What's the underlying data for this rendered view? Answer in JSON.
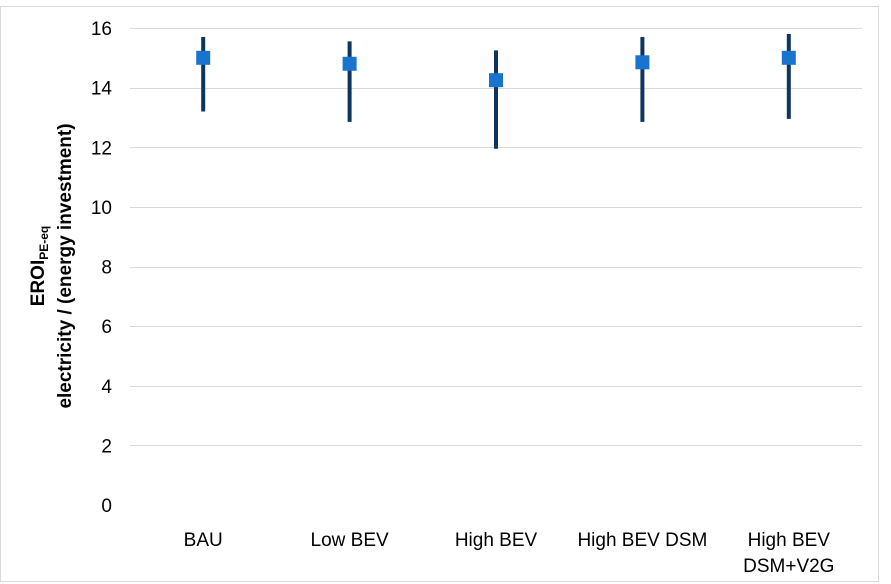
{
  "chart_data": {
    "type": "scatter",
    "title": "",
    "xlabel": "",
    "ylabel": {
      "line1_main": "EROI",
      "line1_subscript": "PE-eq",
      "line2": "electricity / (energy investment)"
    },
    "ylim": [
      0,
      16
    ],
    "yticks": [
      0,
      2,
      4,
      6,
      8,
      10,
      12,
      14,
      16
    ],
    "grid": true,
    "legend": "none",
    "categories": [
      [
        "BAU"
      ],
      [
        "Low BEV"
      ],
      [
        "High BEV"
      ],
      [
        "High BEV DSM"
      ],
      [
        "High BEV",
        "DSM+V2G"
      ]
    ],
    "series": [
      {
        "values": [
          15.0,
          14.8,
          14.25,
          14.85,
          15.0
        ],
        "error_low": [
          13.2,
          12.85,
          11.95,
          12.85,
          12.95
        ],
        "error_high": [
          15.7,
          15.55,
          15.25,
          15.7,
          15.8
        ]
      }
    ],
    "colors": {
      "marker": "#1874cd",
      "error_bar": "#0d3560",
      "grid": "#d9d9d9",
      "frame": "#d9d9d9"
    }
  }
}
